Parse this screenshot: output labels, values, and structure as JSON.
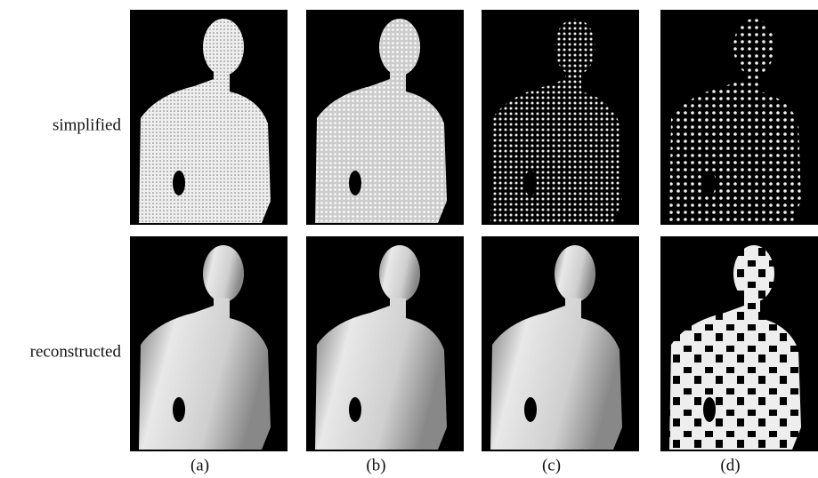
{
  "rows": [
    "simplified",
    "reconstructed"
  ],
  "columns": [
    "(a)",
    "(b)",
    "(c)",
    "(d)"
  ]
}
